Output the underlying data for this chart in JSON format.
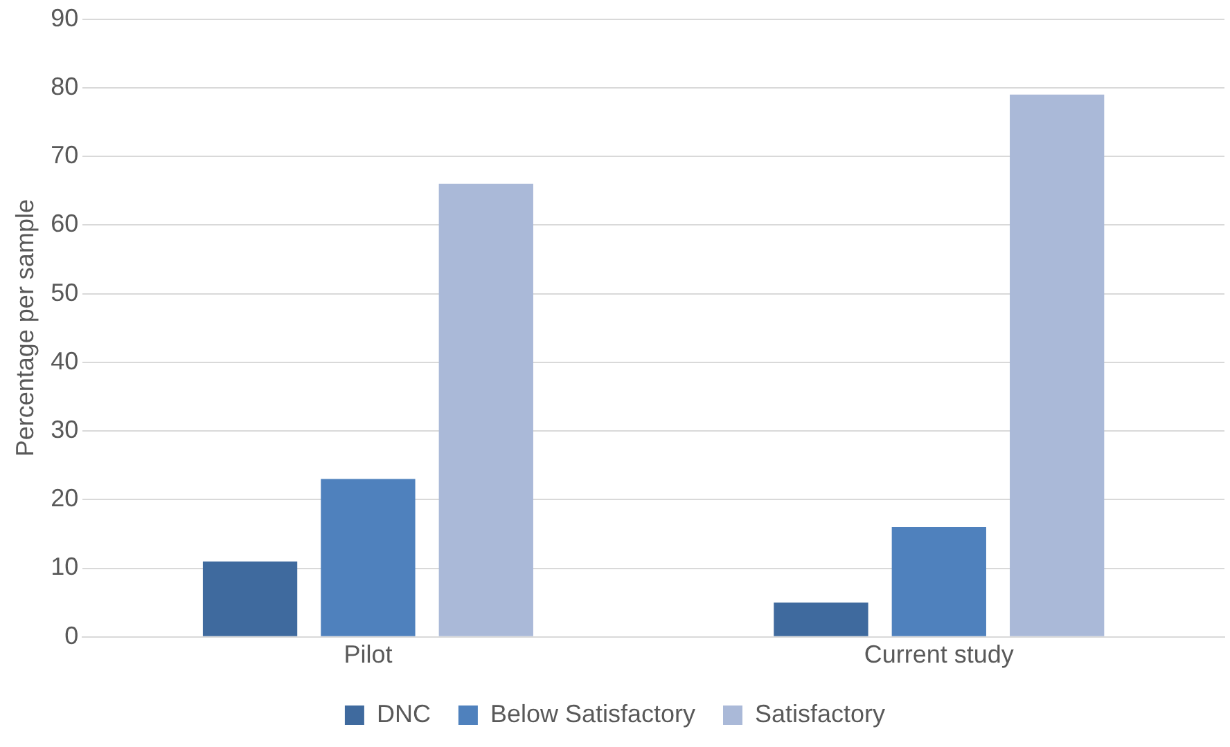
{
  "chart_data": {
    "type": "bar",
    "ylabel": "Percentage per sample",
    "categories": [
      "Pilot",
      "Current study"
    ],
    "series": [
      {
        "name": "DNC",
        "color": "#3f6a9e",
        "values": [
          11,
          5
        ]
      },
      {
        "name": "Below Satisfactory",
        "color": "#4f81bd",
        "values": [
          23,
          16
        ]
      },
      {
        "name": "Satisfactory",
        "color": "#aab9d8",
        "values": [
          66,
          79
        ]
      }
    ],
    "ylim": [
      0,
      90
    ],
    "yticks": [
      0,
      10,
      20,
      30,
      40,
      50,
      60,
      70,
      80,
      90
    ],
    "grid": "y",
    "legend": "bottom"
  }
}
